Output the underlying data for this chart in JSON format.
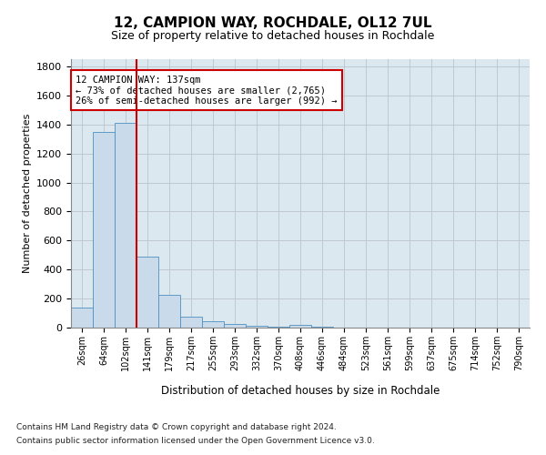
{
  "title1": "12, CAMPION WAY, ROCHDALE, OL12 7UL",
  "title2": "Size of property relative to detached houses in Rochdale",
  "xlabel": "Distribution of detached houses by size in Rochdale",
  "ylabel": "Number of detached properties",
  "footer_line1": "Contains HM Land Registry data © Crown copyright and database right 2024.",
  "footer_line2": "Contains public sector information licensed under the Open Government Licence v3.0.",
  "bin_labels": [
    "26sqm",
    "64sqm",
    "102sqm",
    "141sqm",
    "179sqm",
    "217sqm",
    "255sqm",
    "293sqm",
    "332sqm",
    "370sqm",
    "408sqm",
    "446sqm",
    "484sqm",
    "523sqm",
    "561sqm",
    "599sqm",
    "637sqm",
    "675sqm",
    "714sqm",
    "752sqm",
    "790sqm"
  ],
  "bar_values": [
    135,
    1350,
    1410,
    490,
    225,
    75,
    43,
    27,
    15,
    5,
    20,
    5,
    0,
    0,
    0,
    0,
    0,
    0,
    0,
    0,
    0
  ],
  "bar_color": "#c9daea",
  "bar_edge_color": "#4d8fc0",
  "vline_x": 2.5,
  "vline_color": "#cc0000",
  "ylim": [
    0,
    1850
  ],
  "yticks": [
    0,
    200,
    400,
    600,
    800,
    1000,
    1200,
    1400,
    1600,
    1800
  ],
  "annotation_line1": "12 CAMPION WAY: 137sqm",
  "annotation_line2": "← 73% of detached houses are smaller (2,765)",
  "annotation_line3": "26% of semi-detached houses are larger (992) →",
  "annotation_box_color": "#ffffff",
  "annotation_box_edge": "#cc0000",
  "grid_color": "#c0c8d0",
  "bg_color": "#dce8f0",
  "title1_fontsize": 11,
  "title2_fontsize": 9
}
